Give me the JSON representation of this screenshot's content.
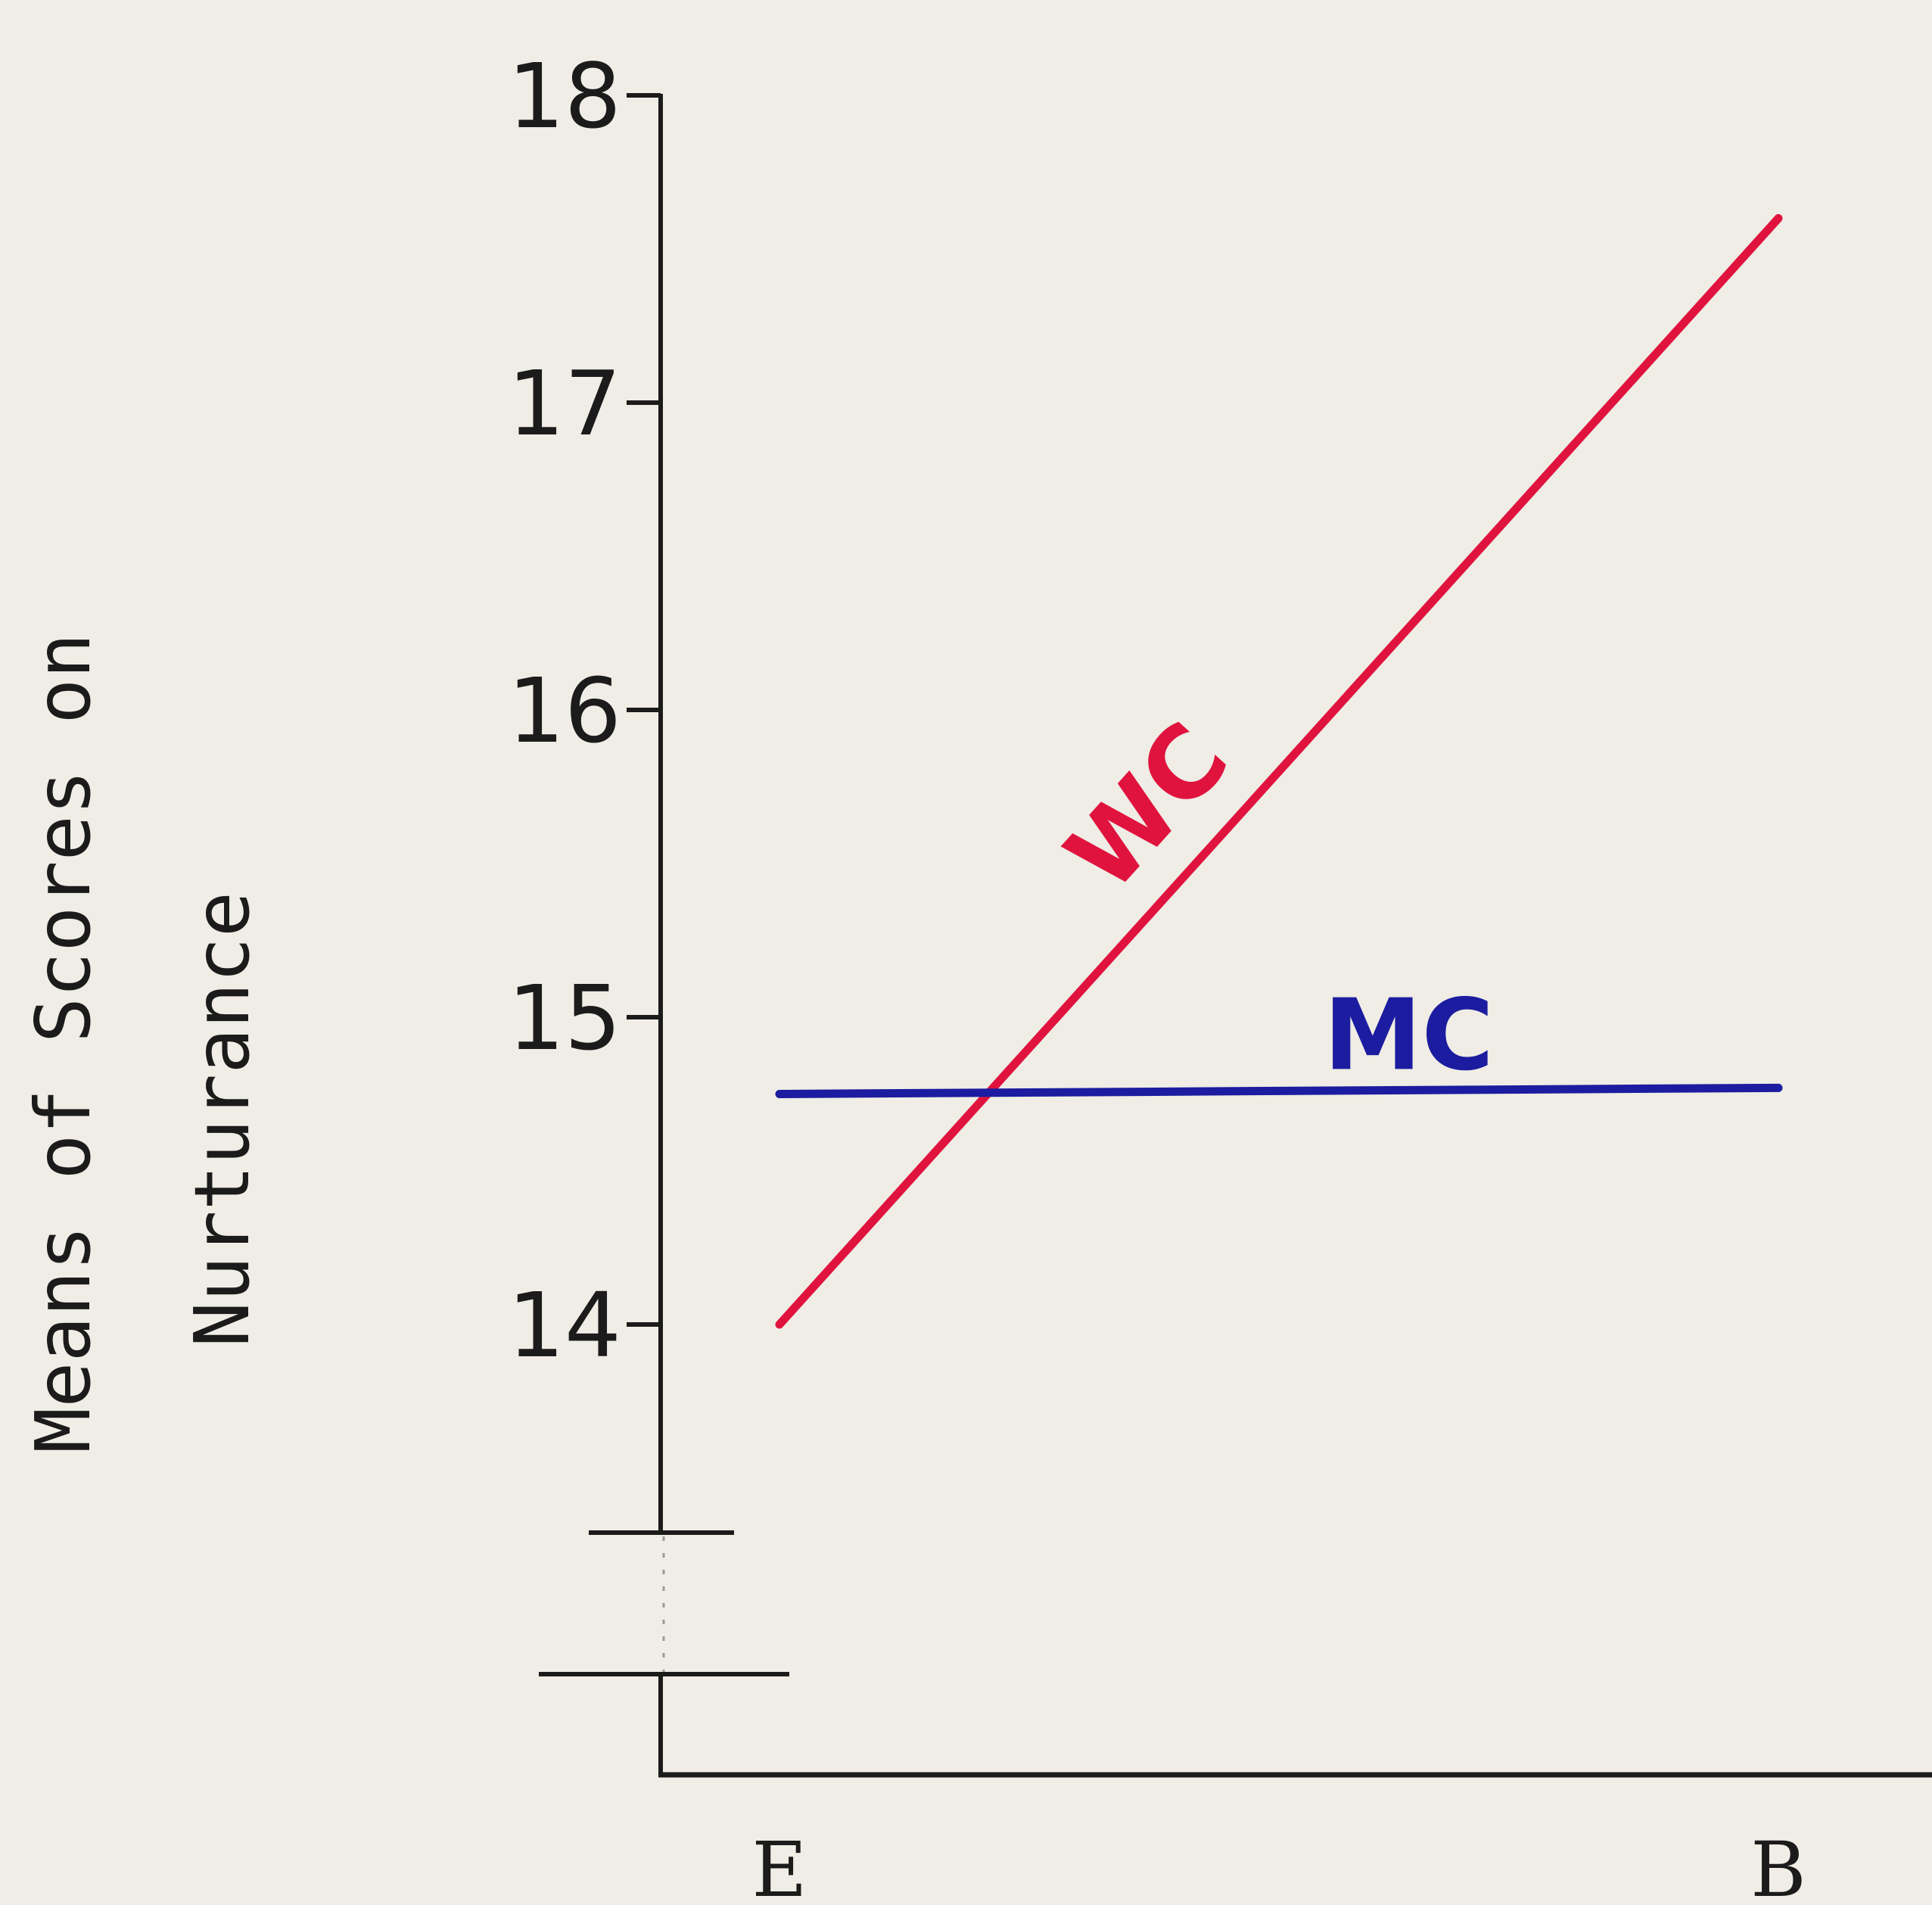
{
  "chart_data": {
    "type": "line",
    "ylabel": [
      "Means of Scores on",
      "Nurturance"
    ],
    "xlabel": "",
    "categories": [
      "E",
      "B"
    ],
    "y_ticks": [
      14,
      15,
      16,
      17,
      18
    ],
    "ylim": [
      13,
      18
    ],
    "axis_break": true,
    "grid": false,
    "series": [
      {
        "name": "WC",
        "values": [
          14.0,
          17.6
        ],
        "color": "#e0133e"
      },
      {
        "name": "MC",
        "values": [
          14.75,
          14.77
        ],
        "color": "#1c1ca0"
      }
    ]
  }
}
